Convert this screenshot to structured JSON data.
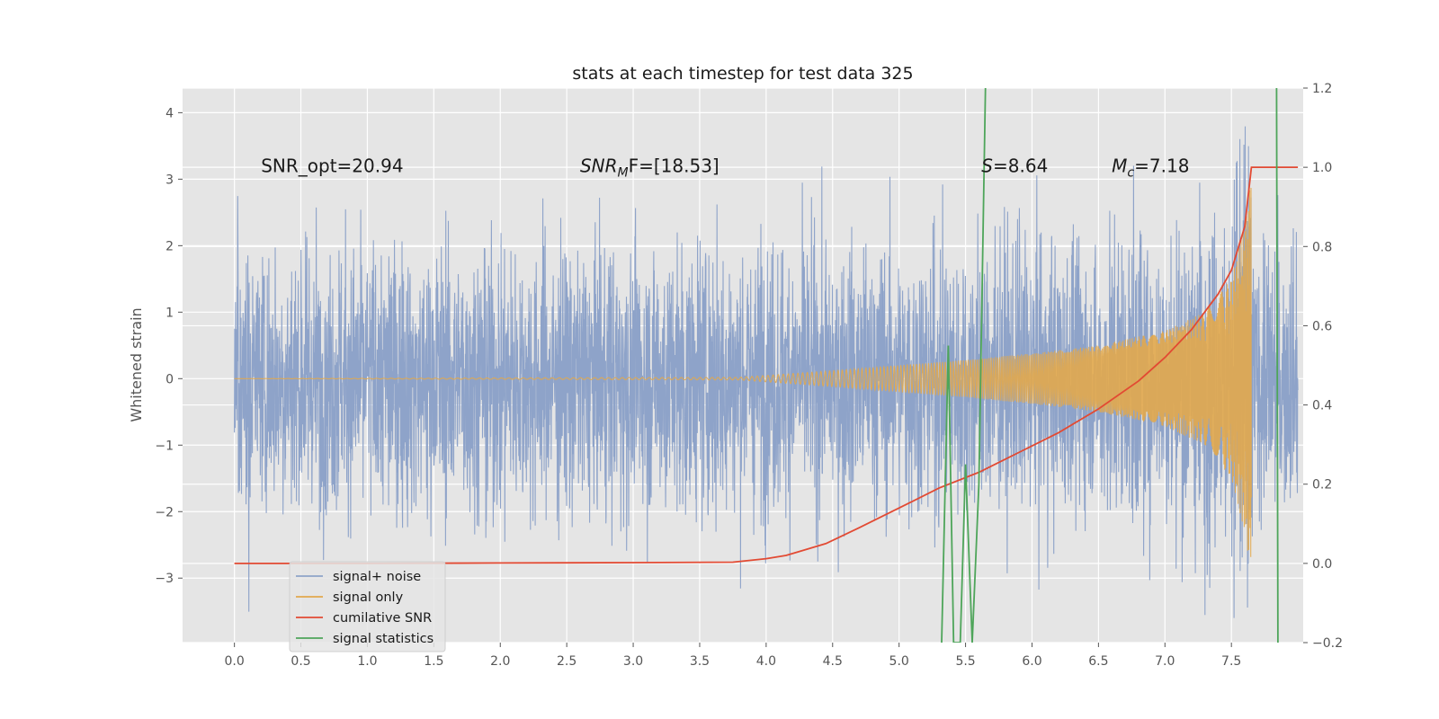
{
  "chart_data": {
    "type": "line",
    "title": "stats at each timestep for test data 325",
    "ylabel": "Whitened strain",
    "xlabel": "",
    "xlim": [
      -0.39,
      8.04
    ],
    "ylim": [
      -3.97,
      4.37
    ],
    "y2lim": [
      -0.2,
      1.2
    ],
    "xticks": [
      "0.0",
      "0.5",
      "1.0",
      "1.5",
      "2.0",
      "2.5",
      "3.0",
      "3.5",
      "4.0",
      "4.5",
      "5.0",
      "5.5",
      "6.0",
      "6.5",
      "7.0",
      "7.5"
    ],
    "xtick_values": [
      0,
      0.5,
      1,
      1.5,
      2,
      2.5,
      3,
      3.5,
      4,
      4.5,
      5,
      5.5,
      6,
      6.5,
      7,
      7.5
    ],
    "yticks": [
      "−3",
      "−2",
      "−1",
      "0",
      "1",
      "2",
      "3",
      "4"
    ],
    "ytick_values": [
      -3,
      -2,
      -1,
      0,
      1,
      2,
      3,
      4
    ],
    "y2ticks": [
      "−0.2",
      "0.0",
      "0.2",
      "0.4",
      "0.6",
      "0.8",
      "1.0",
      "1.2"
    ],
    "y2tick_values": [
      -0.2,
      0,
      0.2,
      0.4,
      0.6,
      0.8,
      1.0,
      1.2
    ],
    "grid": true,
    "legend_position": "lower-left",
    "annotations": [
      {
        "text": "SNR_opt=20.94",
        "x": 0.2,
        "y": 3.2
      },
      {
        "text": "SNRₘF=[18.53]",
        "x": 2.6,
        "y": 3.2,
        "base": "SNR",
        "sub": "M",
        "rest": "F=[18.53]"
      },
      {
        "text": "S=8.64",
        "x": 5.62,
        "y": 3.2,
        "base": "S",
        "sub": "",
        "rest": "=8.64"
      },
      {
        "text": "Mᴄ=7.18",
        "x": 6.6,
        "y": 3.2,
        "base": "M",
        "sub": "c",
        "rest": "=7.18"
      }
    ],
    "series": [
      {
        "name": "signal+ noise",
        "axis": "left",
        "color": "#8ea3c9",
        "kind": "noise",
        "x_range": [
          0,
          8.0
        ],
        "amplitude_band": [
          -3.6,
          4.0
        ]
      },
      {
        "name": "signal only",
        "axis": "left",
        "color": "#e2a94c",
        "kind": "chirp",
        "x_range": [
          0,
          7.65
        ],
        "envelope_x": [
          3.8,
          4.5,
          5.0,
          5.5,
          6.0,
          6.5,
          7.0,
          7.3,
          7.5,
          7.6,
          7.65
        ],
        "envelope_y": [
          0.02,
          0.12,
          0.2,
          0.28,
          0.38,
          0.5,
          0.72,
          1.0,
          1.5,
          2.3,
          3.0
        ]
      },
      {
        "name": "cumilative SNR",
        "axis": "right",
        "color": "#e24a33",
        "x": [
          0,
          1,
          2,
          3,
          3.75,
          4.0,
          4.15,
          4.25,
          4.45,
          4.7,
          5.0,
          5.3,
          5.6,
          5.9,
          6.2,
          6.5,
          6.8,
          7.0,
          7.2,
          7.4,
          7.5,
          7.6,
          7.65,
          8.0
        ],
        "y": [
          0.0,
          0.0,
          0.001,
          0.002,
          0.003,
          0.012,
          0.02,
          0.03,
          0.05,
          0.09,
          0.14,
          0.19,
          0.23,
          0.28,
          0.33,
          0.39,
          0.46,
          0.52,
          0.59,
          0.68,
          0.74,
          0.85,
          1.0,
          1.0
        ]
      },
      {
        "name": "signal statistics",
        "axis": "right",
        "color": "#4ea55a",
        "x": [
          5.32,
          5.37,
          5.41,
          5.46,
          5.5,
          5.55,
          5.6,
          5.65,
          5.65,
          7.84,
          7.85
        ],
        "y": [
          -0.2,
          0.55,
          -0.2,
          -0.2,
          0.25,
          -0.2,
          0.2,
          1.2,
          null,
          1.2,
          -0.2
        ]
      }
    ]
  }
}
